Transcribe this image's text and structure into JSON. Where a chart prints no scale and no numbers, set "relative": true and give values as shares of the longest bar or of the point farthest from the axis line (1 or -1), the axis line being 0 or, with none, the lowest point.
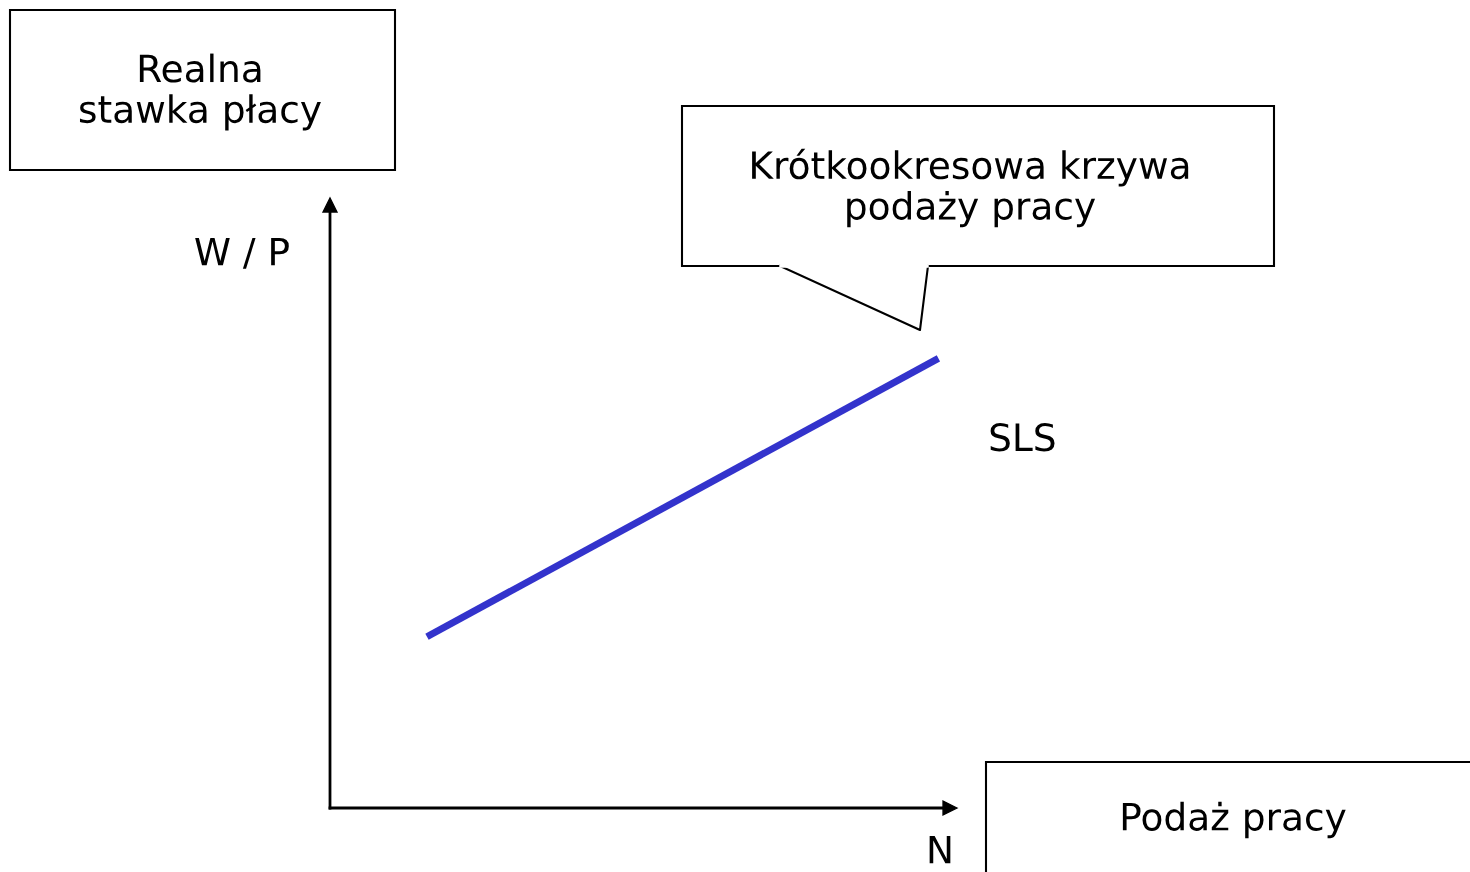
{
  "chart_data": {
    "type": "line",
    "relative": true,
    "xlabel": "N",
    "ylabel": "W / P",
    "categories": [
      null,
      null
    ],
    "series": [
      {
        "name": "SLS",
        "color": "#3333cc",
        "values": [
          0.386,
          1
        ]
      }
    ],
    "annotations": [
      "Realna\nstawka płacy",
      "Krótkookresowa krzywa\npodaży pracy",
      "Podaż pracy"
    ],
    "legend": false,
    "marker": "none",
    "line_style": "solid"
  }
}
